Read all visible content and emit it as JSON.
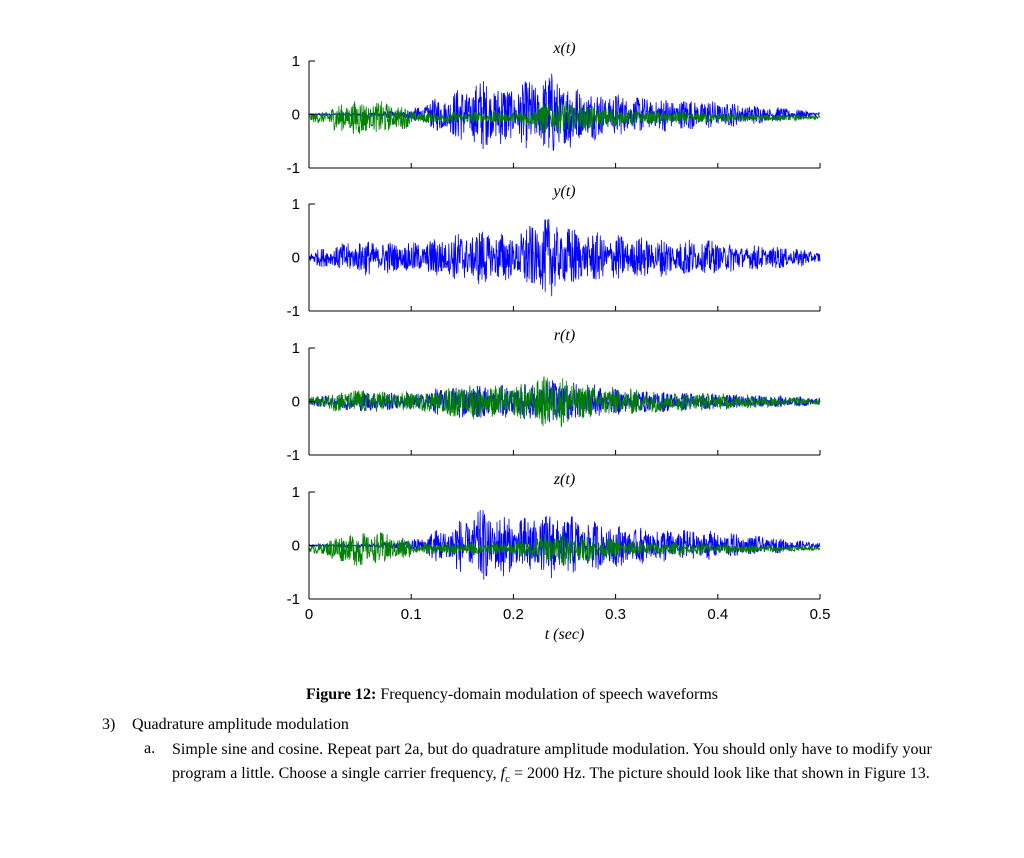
{
  "chart_data": [
    {
      "type": "line",
      "title": "x(t)",
      "xlim": [
        0,
        0.5
      ],
      "ylim": [
        -1,
        1
      ],
      "yticks": [
        -1,
        0,
        1
      ],
      "xticks": [
        0,
        0.1,
        0.2,
        0.3,
        0.4,
        0.5
      ],
      "series": [
        {
          "color": "#0000ff",
          "offset": 0.0,
          "envelope": [
            [
              0,
              0.02
            ],
            [
              0.06,
              0.04
            ],
            [
              0.1,
              0.1
            ],
            [
              0.14,
              0.45
            ],
            [
              0.17,
              0.7
            ],
            [
              0.2,
              0.55
            ],
            [
              0.24,
              0.85
            ],
            [
              0.27,
              0.5
            ],
            [
              0.32,
              0.35
            ],
            [
              0.38,
              0.3
            ],
            [
              0.43,
              0.2
            ],
            [
              0.47,
              0.12
            ],
            [
              0.5,
              0.05
            ]
          ]
        },
        {
          "color": "#008000",
          "offset": -0.06,
          "envelope": [
            [
              0,
              0.05
            ],
            [
              0.04,
              0.35
            ],
            [
              0.08,
              0.3
            ],
            [
              0.11,
              0.1
            ],
            [
              0.15,
              0.12
            ],
            [
              0.2,
              0.12
            ],
            [
              0.24,
              0.35
            ],
            [
              0.27,
              0.25
            ],
            [
              0.32,
              0.15
            ],
            [
              0.4,
              0.1
            ],
            [
              0.5,
              0.04
            ]
          ]
        }
      ]
    },
    {
      "type": "line",
      "title": "y(t)",
      "xlim": [
        0,
        0.5
      ],
      "ylim": [
        -1,
        1
      ],
      "yticks": [
        -1,
        0,
        1
      ],
      "xticks": [
        0,
        0.1,
        0.2,
        0.3,
        0.4,
        0.5
      ],
      "series": [
        {
          "color": "#0000ff",
          "offset": 0.0,
          "envelope": [
            [
              0,
              0.12
            ],
            [
              0.05,
              0.35
            ],
            [
              0.1,
              0.28
            ],
            [
              0.14,
              0.45
            ],
            [
              0.17,
              0.55
            ],
            [
              0.2,
              0.45
            ],
            [
              0.23,
              0.8
            ],
            [
              0.27,
              0.5
            ],
            [
              0.32,
              0.4
            ],
            [
              0.38,
              0.35
            ],
            [
              0.43,
              0.25
            ],
            [
              0.47,
              0.2
            ],
            [
              0.5,
              0.12
            ]
          ]
        }
      ]
    },
    {
      "type": "line",
      "title": "r(t)",
      "xlim": [
        0,
        0.5
      ],
      "ylim": [
        -1,
        1
      ],
      "yticks": [
        -1,
        0,
        1
      ],
      "xticks": [
        0,
        0.1,
        0.2,
        0.3,
        0.4,
        0.5
      ],
      "series": [
        {
          "color": "#0000ff",
          "offset": 0.0,
          "envelope": [
            [
              0,
              0.08
            ],
            [
              0.05,
              0.2
            ],
            [
              0.1,
              0.15
            ],
            [
              0.15,
              0.35
            ],
            [
              0.2,
              0.3
            ],
            [
              0.24,
              0.45
            ],
            [
              0.3,
              0.25
            ],
            [
              0.4,
              0.15
            ],
            [
              0.5,
              0.08
            ]
          ]
        },
        {
          "color": "#008000",
          "offset": 0.0,
          "envelope": [
            [
              0,
              0.08
            ],
            [
              0.04,
              0.25
            ],
            [
              0.08,
              0.2
            ],
            [
              0.12,
              0.2
            ],
            [
              0.15,
              0.35
            ],
            [
              0.2,
              0.3
            ],
            [
              0.24,
              0.55
            ],
            [
              0.28,
              0.3
            ],
            [
              0.35,
              0.2
            ],
            [
              0.42,
              0.15
            ],
            [
              0.5,
              0.06
            ]
          ]
        }
      ]
    },
    {
      "type": "line",
      "title": "z(t)",
      "xlabel": "t (sec)",
      "xlim": [
        0,
        0.5
      ],
      "ylim": [
        -1,
        1
      ],
      "yticks": [
        -1,
        0,
        1
      ],
      "xticks": [
        0,
        0.1,
        0.2,
        0.3,
        0.4,
        0.5
      ],
      "series": [
        {
          "color": "#0000ff",
          "offset": 0.0,
          "envelope": [
            [
              0,
              0.02
            ],
            [
              0.06,
              0.04
            ],
            [
              0.1,
              0.1
            ],
            [
              0.14,
              0.45
            ],
            [
              0.17,
              0.7
            ],
            [
              0.2,
              0.55
            ],
            [
              0.24,
              0.65
            ],
            [
              0.27,
              0.5
            ],
            [
              0.32,
              0.35
            ],
            [
              0.38,
              0.3
            ],
            [
              0.43,
              0.2
            ],
            [
              0.47,
              0.12
            ],
            [
              0.5,
              0.05
            ]
          ]
        },
        {
          "color": "#008000",
          "offset": -0.06,
          "envelope": [
            [
              0,
              0.05
            ],
            [
              0.04,
              0.35
            ],
            [
              0.08,
              0.3
            ],
            [
              0.11,
              0.1
            ],
            [
              0.15,
              0.12
            ],
            [
              0.2,
              0.12
            ],
            [
              0.24,
              0.35
            ],
            [
              0.27,
              0.25
            ],
            [
              0.32,
              0.15
            ],
            [
              0.4,
              0.1
            ],
            [
              0.5,
              0.04
            ]
          ]
        }
      ]
    }
  ],
  "caption": {
    "label": "Figure 12:",
    "text": "Frequency-domain modulation of speech waveforms"
  },
  "section": {
    "number": "3)",
    "title": "Quadrature amplitude modulation"
  },
  "item": {
    "letter": "a.",
    "text_before": "Simple sine and cosine. Repeat part 2a, but do quadrature amplitude modulation. You should only have to modify your program a little. Choose a single carrier frequency, ",
    "var": "f",
    "sub": "c",
    "text_after": " = 2000 Hz. The picture should look like that shown in Figure 13."
  }
}
